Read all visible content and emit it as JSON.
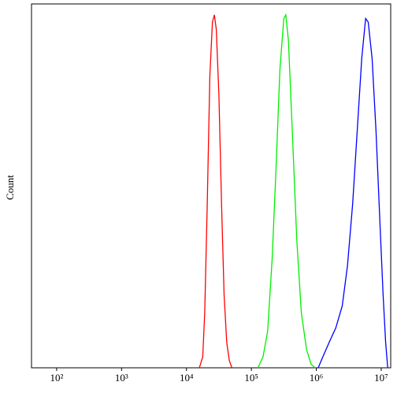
{
  "chart_data": {
    "type": "line",
    "y_label": "Count",
    "xscale": "log",
    "xlim": [
      41,
      14000000
    ],
    "ylim": [
      0,
      100
    ],
    "xticks": [
      {
        "value": 100,
        "label": "10²"
      },
      {
        "value": 1000,
        "label": "10³"
      },
      {
        "value": 10000,
        "label": "10⁴"
      },
      {
        "value": 100000,
        "label": "10⁵"
      },
      {
        "value": 1000000,
        "label": "10⁶"
      },
      {
        "value": 10000000,
        "label": "10⁷"
      }
    ],
    "series": [
      {
        "color": "#ff0000",
        "x": [
          15800,
          17800,
          19100,
          20900,
          22900,
          25100,
          26900,
          28800,
          31600,
          34700,
          38000,
          41700,
          45700,
          50100
        ],
        "values": [
          0,
          3,
          15,
          45,
          80,
          95,
          97,
          93,
          75,
          45,
          20,
          7,
          2,
          0
        ]
      },
      {
        "color": "#00ee00",
        "x": [
          126000,
          151000,
          178000,
          209000,
          240000,
          275000,
          316000,
          339000,
          372000,
          427000,
          501000,
          589000,
          708000,
          832000,
          955000
        ],
        "values": [
          0,
          3,
          10,
          30,
          55,
          82,
          96,
          97,
          90,
          65,
          35,
          15,
          5,
          1,
          0
        ]
      },
      {
        "color": "#0000ff",
        "x": [
          1070000,
          1260000,
          1580000,
          2000000,
          2510000,
          3020000,
          3630000,
          4370000,
          5010000,
          5750000,
          6310000,
          7240000,
          8320000,
          9550000,
          10700000,
          11700000,
          12600000
        ],
        "values": [
          0,
          3,
          7,
          11,
          17,
          28,
          45,
          68,
          85,
          96,
          95,
          85,
          65,
          40,
          20,
          7,
          0
        ]
      }
    ]
  }
}
